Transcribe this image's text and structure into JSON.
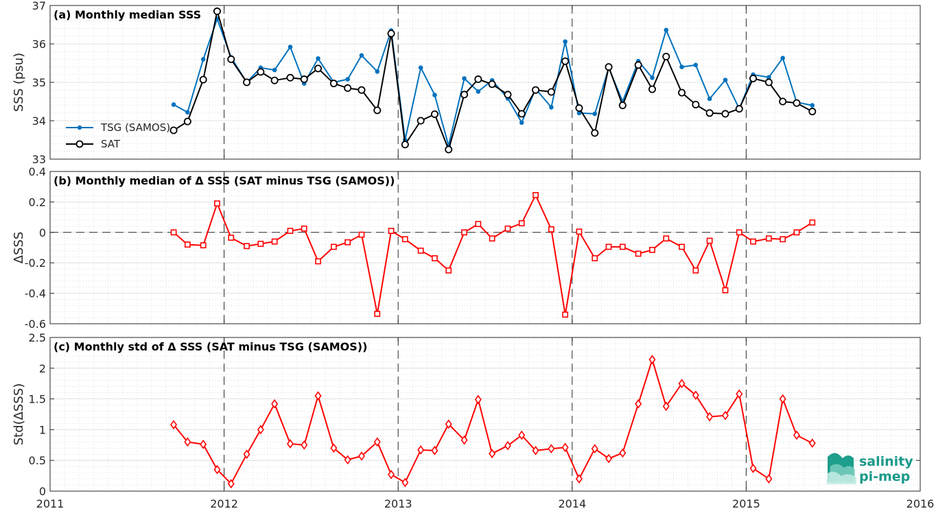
{
  "chart_data": [
    {
      "type": "line",
      "title": "(a) Monthly median SSS",
      "xlabel": "",
      "ylabel": "SSS (psu)",
      "xlim": [
        2011,
        2016
      ],
      "ylim": [
        33,
        37
      ],
      "yticks": [
        33,
        34,
        35,
        36,
        37
      ],
      "grid": true,
      "legend_position": "left",
      "series": [
        {
          "name": "TSG (SAMOS)",
          "color": "#0072BD",
          "marker": "dot",
          "x": [
            2011.71,
            2011.79,
            2011.88,
            2011.96,
            2012.04,
            2012.13,
            2012.21,
            2012.29,
            2012.38,
            2012.46,
            2012.54,
            2012.63,
            2012.71,
            2012.79,
            2012.88,
            2012.96,
            2013.04,
            2013.13,
            2013.21,
            2013.29,
            2013.38,
            2013.46,
            2013.54,
            2013.63,
            2013.71,
            2013.79,
            2013.88,
            2013.96,
            2014.04,
            2014.13,
            2014.21,
            2014.29,
            2014.38,
            2014.46,
            2014.54,
            2014.63,
            2014.71,
            2014.79,
            2014.88,
            2014.96,
            2015.04,
            2015.13,
            2015.21,
            2015.29,
            2015.38
          ],
          "y": [
            34.42,
            34.22,
            35.6,
            36.65,
            35.65,
            35.0,
            35.38,
            35.32,
            35.92,
            34.97,
            35.62,
            35.0,
            35.08,
            35.7,
            35.28,
            36.35,
            33.5,
            35.38,
            34.67,
            33.35,
            35.1,
            34.76,
            35.05,
            34.58,
            33.95,
            34.83,
            34.35,
            36.06,
            34.2,
            34.18,
            35.38,
            34.5,
            35.55,
            35.12,
            36.36,
            35.4,
            35.45,
            34.57,
            35.06,
            34.31,
            35.2,
            35.13,
            35.63,
            34.48,
            34.4
          ]
        },
        {
          "name": "SAT",
          "color": "#000000",
          "marker": "circle",
          "x": [
            2011.71,
            2011.79,
            2011.88,
            2011.96,
            2012.04,
            2012.13,
            2012.21,
            2012.29,
            2012.38,
            2012.46,
            2012.54,
            2012.63,
            2012.71,
            2012.79,
            2012.88,
            2012.96,
            2013.04,
            2013.13,
            2013.21,
            2013.29,
            2013.38,
            2013.46,
            2013.54,
            2013.63,
            2013.71,
            2013.79,
            2013.88,
            2013.96,
            2014.04,
            2014.13,
            2014.21,
            2014.29,
            2014.38,
            2014.46,
            2014.54,
            2014.63,
            2014.71,
            2014.79,
            2014.88,
            2014.96,
            2015.04,
            2015.13,
            2015.21,
            2015.29,
            2015.38
          ],
          "y": [
            33.75,
            33.98,
            35.07,
            36.85,
            35.6,
            35.0,
            35.27,
            35.05,
            35.12,
            35.08,
            35.36,
            34.97,
            34.85,
            34.8,
            34.27,
            36.27,
            33.38,
            34.0,
            34.17,
            33.25,
            34.68,
            35.08,
            34.95,
            34.68,
            34.18,
            34.8,
            34.75,
            35.55,
            34.33,
            33.68,
            35.4,
            34.4,
            35.45,
            34.82,
            35.67,
            34.73,
            34.42,
            34.2,
            34.18,
            34.31,
            35.1,
            35.0,
            34.5,
            34.46,
            34.24
          ]
        }
      ]
    },
    {
      "type": "line",
      "title": "(b) Monthly median of Δ SSS (SAT minus TSG (SAMOS))",
      "xlabel": "",
      "ylabel": "ΔSSS",
      "xlim": [
        2011,
        2016
      ],
      "ylim": [
        -0.6,
        0.4
      ],
      "yticks": [
        -0.6,
        -0.4,
        -0.2,
        0,
        0.2,
        0.4
      ],
      "ytick_labels": [
        "-0.6",
        "-0.4",
        "-0.2",
        "0",
        "0.2",
        "0.4"
      ],
      "grid": true,
      "reference_line": 0,
      "series": [
        {
          "name": "",
          "color": "#FF0000",
          "marker": "square",
          "x": [
            2011.71,
            2011.79,
            2011.88,
            2011.96,
            2012.04,
            2012.13,
            2012.21,
            2012.29,
            2012.38,
            2012.46,
            2012.54,
            2012.63,
            2012.71,
            2012.79,
            2012.88,
            2012.96,
            2013.04,
            2013.13,
            2013.21,
            2013.29,
            2013.38,
            2013.46,
            2013.54,
            2013.63,
            2013.71,
            2013.79,
            2013.88,
            2013.96,
            2014.04,
            2014.13,
            2014.21,
            2014.29,
            2014.38,
            2014.46,
            2014.54,
            2014.63,
            2014.71,
            2014.79,
            2014.88,
            2014.96,
            2015.04,
            2015.13,
            2015.21,
            2015.29,
            2015.38
          ],
          "y": [
            0.0,
            -0.08,
            -0.085,
            0.19,
            -0.035,
            -0.09,
            -0.075,
            -0.06,
            0.01,
            0.025,
            -0.19,
            -0.095,
            -0.065,
            -0.015,
            -0.535,
            0.01,
            -0.045,
            -0.12,
            -0.17,
            -0.25,
            0.0,
            0.055,
            -0.04,
            0.025,
            0.06,
            0.245,
            0.02,
            -0.54,
            0.005,
            -0.17,
            -0.095,
            -0.095,
            -0.14,
            -0.115,
            -0.04,
            -0.095,
            -0.25,
            -0.055,
            -0.38,
            0.0,
            -0.06,
            -0.04,
            -0.045,
            0.0,
            0.065
          ]
        }
      ]
    },
    {
      "type": "line",
      "title": "(c) Monthly std of Δ SSS (SAT minus TSG (SAMOS))",
      "xlabel": "",
      "ylabel": "Std(ΔSSS)",
      "xlim": [
        2011,
        2016
      ],
      "ylim": [
        0,
        2.5
      ],
      "yticks": [
        0,
        0.5,
        1,
        1.5,
        2,
        2.5
      ],
      "ytick_labels": [
        "0",
        "0.5",
        "1",
        "1.5",
        "2",
        "2.5"
      ],
      "xticks": [
        2011,
        2012,
        2013,
        2014,
        2015,
        2016
      ],
      "grid": true,
      "series": [
        {
          "name": "",
          "color": "#FF0000",
          "marker": "diamond",
          "x": [
            2011.71,
            2011.79,
            2011.88,
            2011.96,
            2012.04,
            2012.13,
            2012.21,
            2012.29,
            2012.38,
            2012.46,
            2012.54,
            2012.63,
            2012.71,
            2012.79,
            2012.88,
            2012.96,
            2013.04,
            2013.13,
            2013.21,
            2013.29,
            2013.38,
            2013.46,
            2013.54,
            2013.63,
            2013.71,
            2013.79,
            2013.88,
            2013.96,
            2014.04,
            2014.13,
            2014.21,
            2014.29,
            2014.38,
            2014.46,
            2014.54,
            2014.63,
            2014.71,
            2014.79,
            2014.88,
            2014.96,
            2015.04,
            2015.13,
            2015.21,
            2015.29,
            2015.38
          ],
          "y": [
            1.08,
            0.8,
            0.76,
            0.35,
            0.12,
            0.6,
            1.0,
            1.42,
            0.77,
            0.75,
            1.55,
            0.7,
            0.51,
            0.57,
            0.8,
            0.27,
            0.14,
            0.67,
            0.66,
            1.09,
            0.83,
            1.49,
            0.61,
            0.74,
            0.91,
            0.66,
            0.69,
            0.71,
            0.2,
            0.69,
            0.53,
            0.62,
            1.42,
            2.14,
            1.38,
            1.75,
            1.56,
            1.21,
            1.23,
            1.58,
            0.37,
            0.2,
            1.5,
            0.91,
            0.78
          ]
        }
      ]
    }
  ],
  "x_tick_labels": [
    "2011",
    "2012",
    "2013",
    "2014",
    "2015",
    "2016"
  ],
  "panel_a": {
    "y_tick_labels": [
      "33",
      "34",
      "35",
      "36",
      "37"
    ]
  },
  "logo": {
    "line1": "salinity",
    "line2": "pi-mep"
  }
}
